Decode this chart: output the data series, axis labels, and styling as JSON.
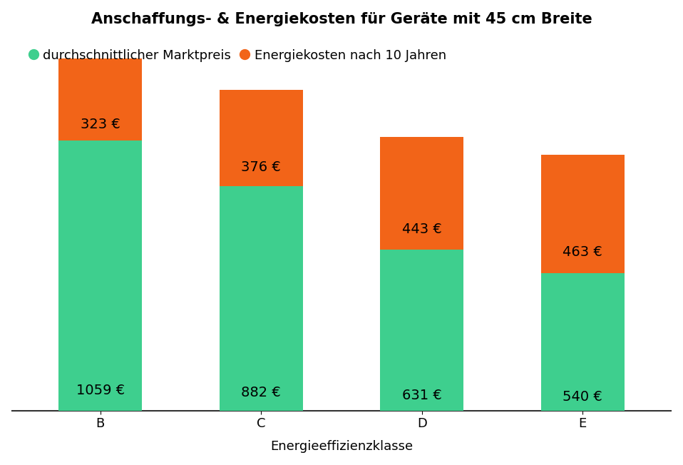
{
  "title": "Anschaffungs- & Energiekosten für Geräte mit 45 cm Breite",
  "categories": [
    "B",
    "C",
    "D",
    "E"
  ],
  "market_prices": [
    1059,
    882,
    631,
    540
  ],
  "energy_costs": [
    323,
    376,
    443,
    463
  ],
  "market_label": "durchschnittlicher Marktpreis",
  "energy_label": "Energiekosten nach 10 Jahren",
  "xlabel": "Energieeffizienzklasse",
  "green_color": "#3ecf8e",
  "orange_color": "#f26418",
  "background_color": "#ffffff",
  "title_fontsize": 15,
  "label_fontsize": 13,
  "tick_fontsize": 13,
  "value_fontsize": 14,
  "bar_width": 0.52,
  "ylim": [
    0,
    1450
  ],
  "grid_color": "#d8d8d8",
  "grid_linewidth": 1.0
}
